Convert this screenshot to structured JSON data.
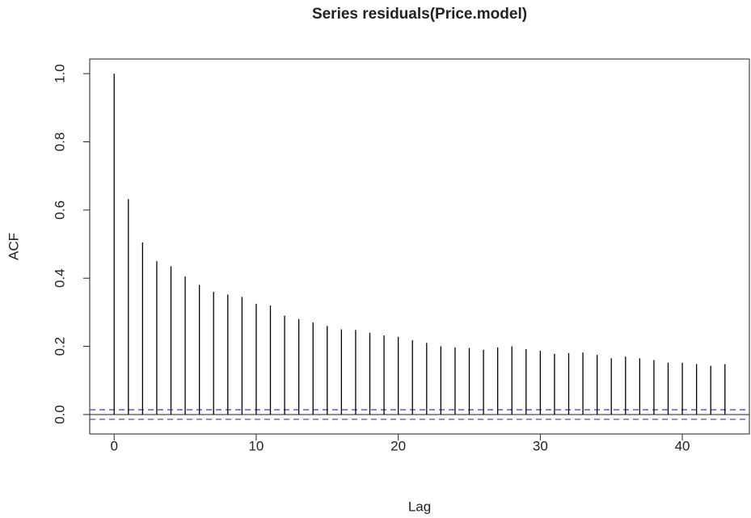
{
  "chart_data": {
    "type": "acf",
    "title": "Series  residuals(Price.model)",
    "x_label": "Lag",
    "y_label": "ACF",
    "x": [
      0,
      1,
      2,
      3,
      4,
      5,
      6,
      7,
      8,
      9,
      10,
      11,
      12,
      13,
      14,
      15,
      16,
      17,
      18,
      19,
      20,
      21,
      22,
      23,
      24,
      25,
      26,
      27,
      28,
      29,
      30,
      31,
      32,
      33,
      34,
      35,
      36,
      37,
      38,
      39,
      40,
      41,
      42,
      43
    ],
    "values": [
      1.0,
      0.632,
      0.505,
      0.45,
      0.435,
      0.405,
      0.38,
      0.36,
      0.352,
      0.345,
      0.325,
      0.32,
      0.29,
      0.28,
      0.27,
      0.26,
      0.25,
      0.248,
      0.24,
      0.232,
      0.228,
      0.218,
      0.21,
      0.2,
      0.197,
      0.195,
      0.19,
      0.197,
      0.2,
      0.192,
      0.187,
      0.178,
      0.18,
      0.182,
      0.175,
      0.165,
      0.17,
      0.165,
      0.16,
      0.152,
      0.152,
      0.148,
      0.143,
      0.148
    ],
    "color": "#000000",
    "ci_lines": {
      "values": [
        0.014,
        -0.014
      ],
      "color": "#4b4bd6"
    },
    "xlim": [
      -1.72,
      44.72
    ],
    "ylim": [
      -0.057,
      1.043
    ],
    "xticks": [
      0,
      10,
      20,
      30,
      40
    ],
    "yticks": [
      {
        "value": 0,
        "label": "0.0"
      },
      0.2,
      0.4,
      0.6,
      0.8,
      {
        "value": 1,
        "label": "1.0"
      }
    ]
  }
}
